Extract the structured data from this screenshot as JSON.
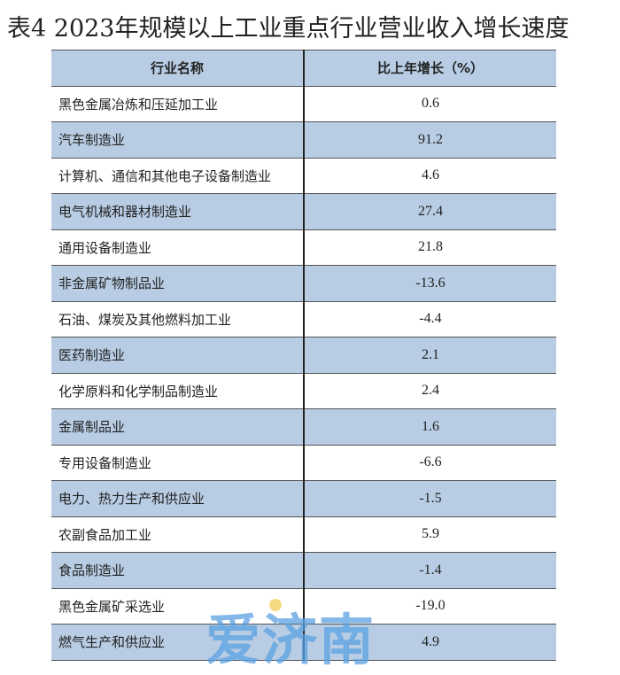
{
  "title": "表4  2023年规模以上工业重点行业营业收入增长速度",
  "table": {
    "headers": [
      "行业名称",
      "比上年增长（%）"
    ],
    "rows": [
      {
        "name": "黑色金属冶炼和压延加工业",
        "value": "0.6"
      },
      {
        "name": "汽车制造业",
        "value": "91.2"
      },
      {
        "name": "计算机、通信和其他电子设备制造业",
        "value": "4.6"
      },
      {
        "name": "电气机械和器材制造业",
        "value": "27.4"
      },
      {
        "name": "通用设备制造业",
        "value": "21.8"
      },
      {
        "name": "非金属矿物制品业",
        "value": "-13.6"
      },
      {
        "name": "石油、煤炭及其他燃料加工业",
        "value": "-4.4"
      },
      {
        "name": "医药制造业",
        "value": "2.1"
      },
      {
        "name": "化学原料和化学制品制造业",
        "value": "2.4"
      },
      {
        "name": "金属制品业",
        "value": "1.6"
      },
      {
        "name": "专用设备制造业",
        "value": "-6.6"
      },
      {
        "name": "电力、热力生产和供应业",
        "value": "-1.5"
      },
      {
        "name": "农副食品加工业",
        "value": "5.9"
      },
      {
        "name": "食品制造业",
        "value": "-1.4"
      },
      {
        "name": "黑色金属矿采选业",
        "value": "-19.0"
      },
      {
        "name": "燃气生产和供应业",
        "value": "4.9"
      }
    ]
  },
  "watermark": "爱济南",
  "colors": {
    "row_alt": "#b8cde4",
    "watermark": "#5aa0e1"
  }
}
